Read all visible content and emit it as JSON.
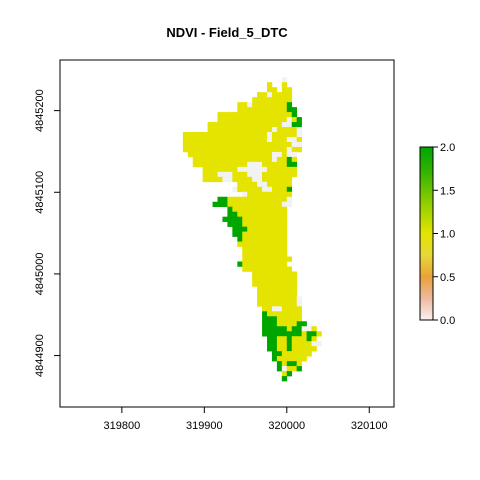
{
  "chart_data": {
    "type": "heatmap",
    "title": "NDVI - Field_5_DTC",
    "xlabel": "",
    "ylabel": "",
    "xlim": [
      319725,
      320130
    ],
    "ylim": [
      4844837,
      4845262
    ],
    "x_ticks": [
      319800,
      319900,
      320000,
      320100
    ],
    "x_tick_labels": [
      "319800",
      "319900",
      "320000",
      "320100"
    ],
    "y_ticks": [
      4844900,
      4845000,
      4845100,
      4845200
    ],
    "y_tick_labels": [
      "4844900",
      "4845000",
      "4845100",
      "4845200"
    ],
    "grid": false,
    "colorbar": {
      "range": [
        0.0,
        2.0
      ],
      "ticks": [
        0.0,
        0.5,
        1.0,
        1.5,
        2.0
      ],
      "tick_labels": [
        "0.0",
        "0.5",
        "1.0",
        "1.5",
        "2.0"
      ],
      "colors": [
        "#f9f1f1",
        "#eeb99f",
        "#e8a23b",
        "#e6d83a",
        "#e4e400",
        "#a8d500",
        "#6bc300",
        "#2cb000",
        "#00a600"
      ]
    },
    "raster": {
      "x0": 319814,
      "y_top": 4845247,
      "cell_size_x": 6,
      "cell_size_y": 6.1,
      "legend": {
        ".": "no data",
        "W": 0.0,
        "Y": 1.0,
        "G": 2.0
      },
      "rows": [
        "...................................",
        "..............................W....",
        "...........................Y..Y....",
        "...........................YY.YY...",
        ".........................YYWYYYY...",
        "........................YYYYYYYY...",
        ".....................YYWYYYYYYYG...",
        ".....................YYYYYYYYYYGG..",
        ".................YYYYYYYYYYYYYYYG..",
        ".................YYYYYYYYYYYYYYWYG.",
        "...............YYYYYYYYYYYYYYYWWGG.",
        "...............YYYYYYYYYYYYYWYYYYW.",
        "..........YYYYYYYYYYYYYYYYYWYYYYYW.",
        "..........YYYYYYYYYYYYYYYYYWYYYWWY.",
        "..........YYYYYYYYYYYYYYYYYYYYYYWW.",
        "..........YYYYYYYYYYYYYYYYYYYYYWYY.",
        "...........YYYYYYYYYYYYYYYYYWWYWW..",
        "............YYYYYYYYYYYYYYYYWYYGY..",
        "............YYYYYYYYYYYWWWYYYYYGG..",
        "..............YYYYYYYWWWWWWYYYYYY..",
        "..............YYYWWWYYYWWWYYYYYYY..",
        "..............YYYYWWYYYYWWYYYYYY...",
        ".....................YYYYWWYYYYY...",
        "....................WYYYYYWWYYYG...",
        "......................WYYYYYYYYY...",
        ".................GGYYYYYYYYYYYYW...",
        "................GGGYYYYYYYYYYYWW...",
        "...................GYYYYYYYYYYY....",
        "...................GGYYYYYYYYYY....",
        "..................GGGGYYYYYYYYY....",
        "...................GGGYYYYYYYYY....",
        "....................GGGYYYYYYYY....",
        "....................GGYYYYYYYYY....",
        ".....................GYYYYYYYYY....",
        ".....................YYYYYYYYYY....",
        "......................YYYYYYYYY....",
        "......................YYYYYYYYY....",
        "......................YYYYYYYYYY...",
        ".....................GYYYYYYYYY....",
        "......................YYYYYYYYYY...",
        "........................YYYYYYYYY..",
        "........................YYYYYYYYY..",
        "........................YYYYYYYYY..",
        ".........................YYYYYYYY..",
        ".........................YYYYYYYY..",
        ".........................YYYYYYYYW.",
        ".........................YYYYYYYYW.",
        "..........................YYWWYYYY.",
        "..........................GYYYYYYY.",
        "..........................GGGYYYYY.",
        "..........................GGGYYYYGG",
        "..........................GGGGGYGGWWY.",
        "..........................GGGGGGGGYGGY",
        "...........................GGYYGYYYGY.",
        "...........................GGYYGYYYYWW",
        "...........................GGYYGYYYYY.",
        "............................GGYYYYYY..",
        "............................GYYYYYY...",
        ".............................GYGGY....",
        ".............................GWYYG....",
        "..............................YG......",
        "..............................G......."
      ]
    }
  }
}
